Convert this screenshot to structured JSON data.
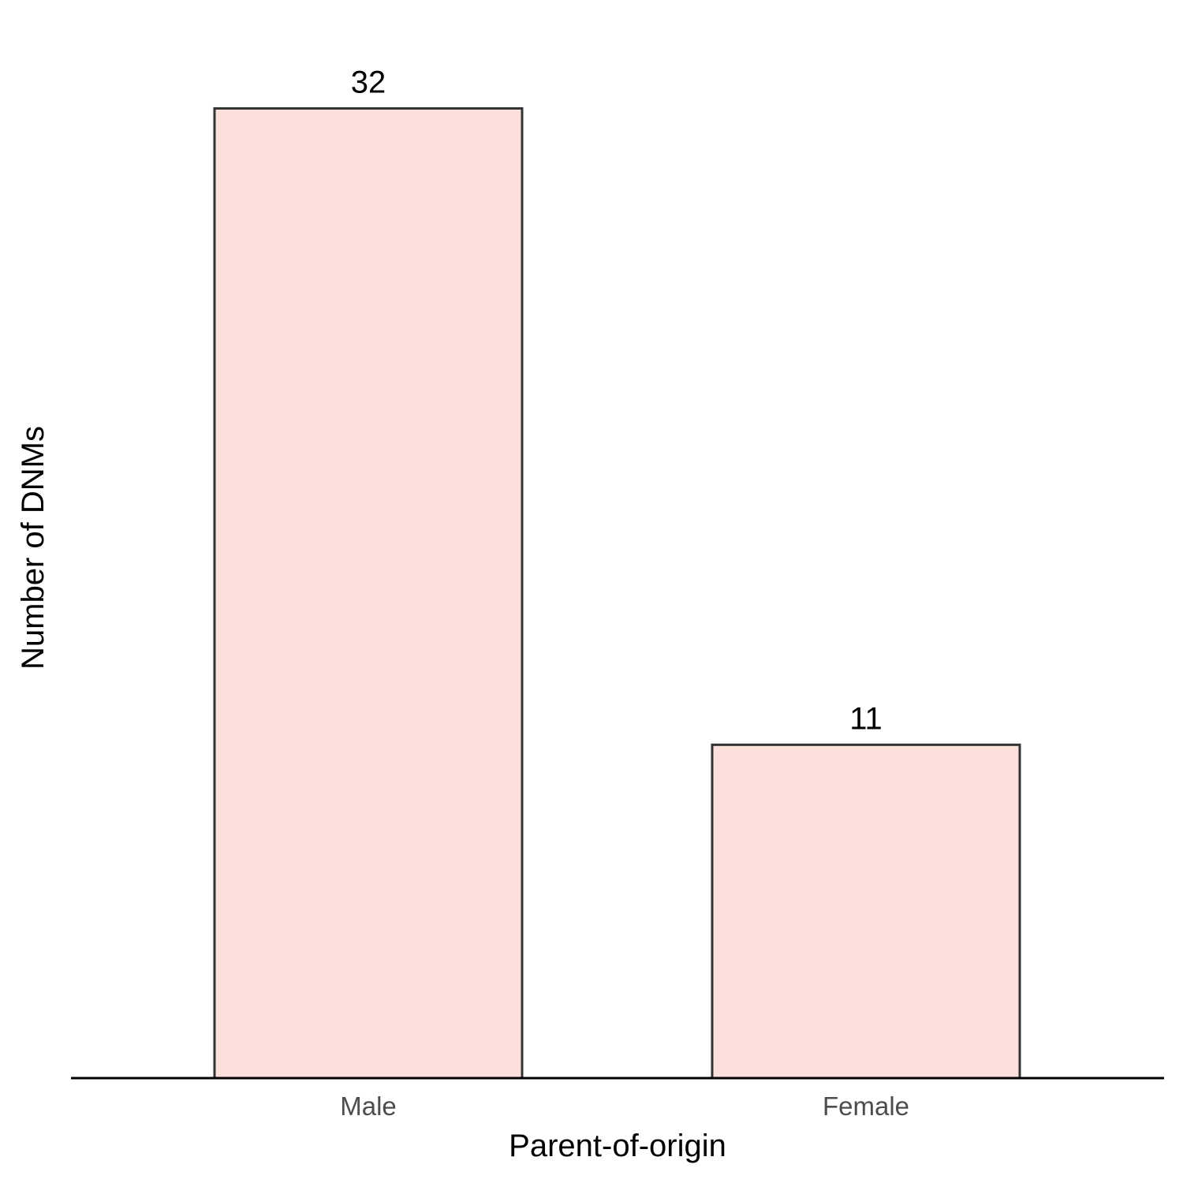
{
  "chart_data": {
    "type": "bar",
    "title": "",
    "xlabel": "Parent-of-origin",
    "ylabel": "Number of DNMs",
    "categories": [
      "Male",
      "Female"
    ],
    "values": [
      32,
      11
    ],
    "data_labels": [
      "32",
      "11"
    ],
    "ylim": [
      0,
      33.6
    ],
    "grid": false,
    "legend": "none",
    "colors": {
      "bar_fill": "#fce0dc",
      "bar_stroke": "#333333",
      "axis_line": "#000000",
      "tick_text": "#4d4d4d",
      "label_text": "#000000"
    }
  }
}
